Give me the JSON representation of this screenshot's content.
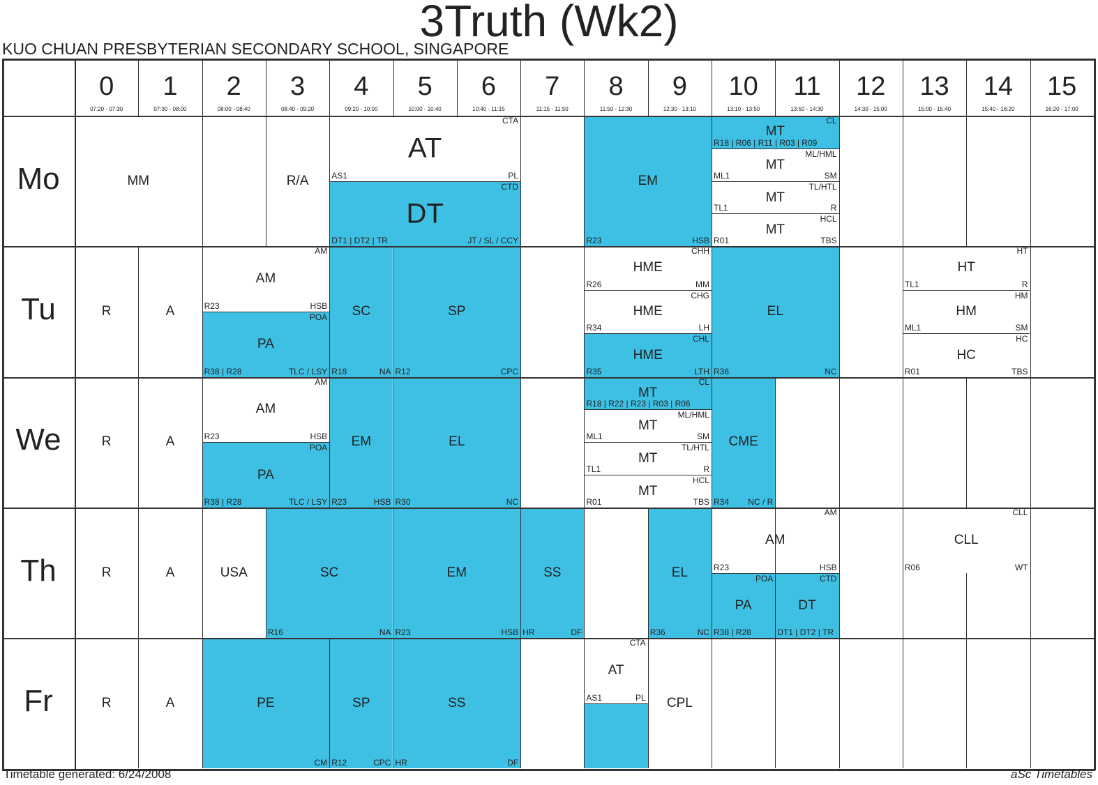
{
  "title": "3Truth (Wk2)",
  "school": "KUO CHUAN PRESBYTERIAN SECONDARY SCHOOL, SINGAPORE",
  "footer_left": "Timetable generated: 6/24/2008",
  "footer_right": "aSc Timetables",
  "periods": [
    {
      "n": "0",
      "t": "07:20 - 07:30"
    },
    {
      "n": "1",
      "t": "07:30 - 08:00"
    },
    {
      "n": "2",
      "t": "08:00 - 08:40"
    },
    {
      "n": "3",
      "t": "08:40 - 09:20"
    },
    {
      "n": "4",
      "t": "09:20 - 10:00"
    },
    {
      "n": "5",
      "t": "10:00 - 10:40"
    },
    {
      "n": "6",
      "t": "10:40 - 11:15"
    },
    {
      "n": "7",
      "t": "11:15 - 11:50"
    },
    {
      "n": "8",
      "t": "11:50 - 12:30"
    },
    {
      "n": "9",
      "t": "12:30 - 13:10"
    },
    {
      "n": "10",
      "t": "13:10 - 13:50"
    },
    {
      "n": "11",
      "t": "13:50 - 14:30"
    },
    {
      "n": "12",
      "t": "14:30 - 15:00"
    },
    {
      "n": "13",
      "t": "15:00 - 15:40"
    },
    {
      "n": "14",
      "t": "15:40 - 16:20"
    },
    {
      "n": "15",
      "t": "16:20 - 17:00"
    }
  ],
  "days": [
    "Mo",
    "Tu",
    "We",
    "Th",
    "Fr"
  ],
  "lessons": [
    {
      "d": 0,
      "p": 0,
      "s": 2,
      "y": 0,
      "h": 1,
      "subj": "MM"
    },
    {
      "d": 0,
      "p": 3,
      "s": 1,
      "y": 0,
      "h": 1,
      "subj": "R/A"
    },
    {
      "d": 0,
      "p": 4,
      "s": 3,
      "y": 0,
      "h": 0.5,
      "subj": "AT",
      "lg": true,
      "tr": "CTA",
      "bl": "AS1",
      "br": "PL"
    },
    {
      "d": 0,
      "p": 4,
      "s": 3,
      "y": 0.5,
      "h": 0.5,
      "subj": "DT",
      "lg": true,
      "hl": true,
      "tr": "CTD",
      "bl": "DT1 | DT2 | TR",
      "br": "JT / SL / CCY"
    },
    {
      "d": 0,
      "p": 8,
      "s": 2,
      "y": 0,
      "h": 1,
      "subj": "EM",
      "hl": true,
      "bl": "R23",
      "br": "HSB"
    },
    {
      "d": 0,
      "p": 10,
      "s": 2,
      "y": 0,
      "h": 0.25,
      "subj": "MT",
      "hl": true,
      "tr": "CL",
      "bl": "R18 | R06 | R11 | R03 | R09"
    },
    {
      "d": 0,
      "p": 10,
      "s": 2,
      "y": 0.25,
      "h": 0.25,
      "subj": "MT",
      "tr": "ML/HML",
      "bl": "ML1",
      "br": "SM"
    },
    {
      "d": 0,
      "p": 10,
      "s": 2,
      "y": 0.5,
      "h": 0.25,
      "subj": "MT",
      "tr": "TL/HTL",
      "bl": "TL1",
      "br": "R"
    },
    {
      "d": 0,
      "p": 10,
      "s": 2,
      "y": 0.75,
      "h": 0.25,
      "subj": "MT",
      "tr": "HCL",
      "bl": "R01",
      "br": "TBS"
    },
    {
      "d": 1,
      "p": 0,
      "s": 1,
      "y": 0,
      "h": 1,
      "subj": "R"
    },
    {
      "d": 1,
      "p": 1,
      "s": 1,
      "y": 0,
      "h": 1,
      "subj": "A"
    },
    {
      "d": 1,
      "p": 2,
      "s": 2,
      "y": 0,
      "h": 0.5,
      "subj": "AM",
      "tr": "AM",
      "bl": "R23",
      "br": "HSB"
    },
    {
      "d": 1,
      "p": 2,
      "s": 2,
      "y": 0.5,
      "h": 0.5,
      "subj": "PA",
      "hl": true,
      "tr": "POA",
      "bl": "R38 | R28",
      "br": "TLC / LSY"
    },
    {
      "d": 1,
      "p": 4,
      "s": 1,
      "y": 0,
      "h": 1,
      "subj": "SC",
      "hl": true,
      "bl": "R18",
      "br": "NA"
    },
    {
      "d": 1,
      "p": 5,
      "s": 2,
      "y": 0,
      "h": 1,
      "subj": "SP",
      "hl": true,
      "bl": "R12",
      "br": "CPC"
    },
    {
      "d": 1,
      "p": 8,
      "s": 2,
      "y": 0,
      "h": 0.333,
      "subj": "HME",
      "tr": "CHH",
      "bl": "R26",
      "br": "MM"
    },
    {
      "d": 1,
      "p": 8,
      "s": 2,
      "y": 0.333,
      "h": 0.333,
      "subj": "HME",
      "tr": "CHG",
      "bl": "R34",
      "br": "LH"
    },
    {
      "d": 1,
      "p": 8,
      "s": 2,
      "y": 0.666,
      "h": 0.334,
      "subj": "HME",
      "hl": true,
      "tr": "CHL",
      "bl": "R35",
      "br": "LTH"
    },
    {
      "d": 1,
      "p": 10,
      "s": 2,
      "y": 0,
      "h": 1,
      "subj": "EL",
      "hl": true,
      "bl": "R36",
      "br": "NC"
    },
    {
      "d": 1,
      "p": 13,
      "s": 2,
      "y": 0,
      "h": 0.333,
      "subj": "HT",
      "tr": "HT",
      "bl": "TL1",
      "br": "R"
    },
    {
      "d": 1,
      "p": 13,
      "s": 2,
      "y": 0.333,
      "h": 0.333,
      "subj": "HM",
      "tr": "HM",
      "bl": "ML1",
      "br": "SM"
    },
    {
      "d": 1,
      "p": 13,
      "s": 2,
      "y": 0.666,
      "h": 0.334,
      "subj": "HC",
      "tr": "HC",
      "bl": "R01",
      "br": "TBS"
    },
    {
      "d": 2,
      "p": 0,
      "s": 1,
      "y": 0,
      "h": 1,
      "subj": "R"
    },
    {
      "d": 2,
      "p": 1,
      "s": 1,
      "y": 0,
      "h": 1,
      "subj": "A"
    },
    {
      "d": 2,
      "p": 2,
      "s": 2,
      "y": 0,
      "h": 0.5,
      "subj": "AM",
      "tr": "AM",
      "bl": "R23",
      "br": "HSB"
    },
    {
      "d": 2,
      "p": 2,
      "s": 2,
      "y": 0.5,
      "h": 0.5,
      "subj": "PA",
      "hl": true,
      "tr": "POA",
      "bl": "R38 | R28",
      "br": "TLC / LSY"
    },
    {
      "d": 2,
      "p": 4,
      "s": 1,
      "y": 0,
      "h": 1,
      "subj": "EM",
      "hl": true,
      "bl": "R23",
      "br": "HSB"
    },
    {
      "d": 2,
      "p": 5,
      "s": 2,
      "y": 0,
      "h": 1,
      "subj": "EL",
      "hl": true,
      "bl": "R30",
      "br": "NC"
    },
    {
      "d": 2,
      "p": 8,
      "s": 2,
      "y": 0,
      "h": 0.25,
      "subj": "MT",
      "hl": true,
      "tr": "CL",
      "bl": "R18 | R22 | R23 | R03 | R06"
    },
    {
      "d": 2,
      "p": 8,
      "s": 2,
      "y": 0.25,
      "h": 0.25,
      "subj": "MT",
      "tr": "ML/HML",
      "bl": "ML1",
      "br": "SM"
    },
    {
      "d": 2,
      "p": 8,
      "s": 2,
      "y": 0.5,
      "h": 0.25,
      "subj": "MT",
      "tr": "TL/HTL",
      "bl": "TL1",
      "br": "R"
    },
    {
      "d": 2,
      "p": 8,
      "s": 2,
      "y": 0.75,
      "h": 0.25,
      "subj": "MT",
      "tr": "HCL",
      "bl": "R01",
      "br": "TBS"
    },
    {
      "d": 2,
      "p": 10,
      "s": 1,
      "y": 0,
      "h": 1,
      "subj": "CME",
      "hl": true,
      "bl": "R34",
      "br": "NC / R"
    },
    {
      "d": 3,
      "p": 0,
      "s": 1,
      "y": 0,
      "h": 1,
      "subj": "R"
    },
    {
      "d": 3,
      "p": 1,
      "s": 1,
      "y": 0,
      "h": 1,
      "subj": "A"
    },
    {
      "d": 3,
      "p": 2,
      "s": 1,
      "y": 0,
      "h": 1,
      "subj": "USA"
    },
    {
      "d": 3,
      "p": 3,
      "s": 2,
      "y": 0,
      "h": 1,
      "subj": "SC",
      "hl": true,
      "bl": "R16",
      "br": "NA"
    },
    {
      "d": 3,
      "p": 5,
      "s": 2,
      "y": 0,
      "h": 1,
      "subj": "EM",
      "hl": true,
      "bl": "R23",
      "br": "HSB"
    },
    {
      "d": 3,
      "p": 7,
      "s": 1,
      "y": 0,
      "h": 1,
      "subj": "SS",
      "hl": true,
      "bl": "HR",
      "br": "DF"
    },
    {
      "d": 3,
      "p": 9,
      "s": 1,
      "y": 0,
      "h": 1,
      "subj": "EL",
      "hl": true,
      "bl": "R36",
      "br": "NC"
    },
    {
      "d": 3,
      "p": 10,
      "s": 2,
      "y": 0,
      "h": 0.5,
      "subj": "AM",
      "tr": "AM",
      "bl": "R23",
      "br": "HSB",
      "half": 1
    },
    {
      "d": 3,
      "p": 10,
      "s": 1,
      "y": 0.5,
      "h": 0.5,
      "subj": "PA",
      "hl": true,
      "tr": "POA",
      "bl": "R38 | R28"
    },
    {
      "d": 3,
      "p": 11,
      "s": 1,
      "y": 0.5,
      "h": 0.5,
      "subj": "DT",
      "hl": true,
      "tr": "CTD",
      "bl": "DT1 | DT2 | TR"
    },
    {
      "d": 3,
      "p": 13,
      "s": 2,
      "y": 0,
      "h": 0.5,
      "subj": "CLL",
      "tr": "CLL",
      "bl": "R06",
      "br": "WT"
    },
    {
      "d": 4,
      "p": 0,
      "s": 1,
      "y": 0,
      "h": 1,
      "subj": "R"
    },
    {
      "d": 4,
      "p": 1,
      "s": 1,
      "y": 0,
      "h": 1,
      "subj": "A"
    },
    {
      "d": 4,
      "p": 2,
      "s": 2,
      "y": 0,
      "h": 1,
      "subj": "PE",
      "hl": true,
      "br": "CM"
    },
    {
      "d": 4,
      "p": 4,
      "s": 1,
      "y": 0,
      "h": 1,
      "subj": "SP",
      "hl": true,
      "bl": "R12",
      "br": "CPC"
    },
    {
      "d": 4,
      "p": 5,
      "s": 2,
      "y": 0,
      "h": 1,
      "subj": "SS",
      "hl": true,
      "bl": "HR",
      "br": "DF"
    },
    {
      "d": 4,
      "p": 8,
      "s": 1,
      "y": 0,
      "h": 0.5,
      "subj": "AT",
      "tr": "CTA",
      "bl": "AS1",
      "br": "PL"
    },
    {
      "d": 4,
      "p": 8,
      "s": 1,
      "y": 0.5,
      "h": 0.5,
      "subj": "",
      "hl": true
    },
    {
      "d": 4,
      "p": 9,
      "s": 1,
      "y": 0,
      "h": 1,
      "subj": "CPL"
    }
  ]
}
